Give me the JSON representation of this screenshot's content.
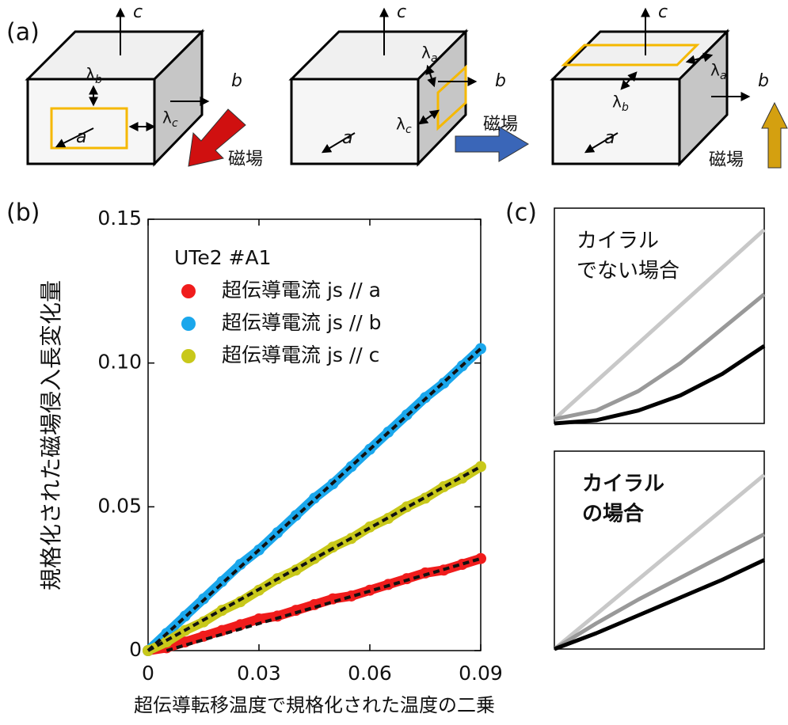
{
  "panel_a": {
    "label": "(a)",
    "cubes": [
      {
        "c": "c",
        "b": "b",
        "a": "a",
        "lambdas": [
          {
            "symbol": "λ",
            "sub": "b"
          },
          {
            "symbol": "λ",
            "sub": "c"
          }
        ],
        "field": "磁場"
      },
      {
        "c": "c",
        "b": "b",
        "a": "a",
        "lambdas": [
          {
            "symbol": "λ",
            "sub": "a"
          },
          {
            "symbol": "λ",
            "sub": "c"
          }
        ],
        "field": "磁場"
      },
      {
        "c": "c",
        "b": "b",
        "a": "a",
        "lambdas": [
          {
            "symbol": "λ",
            "sub": "a"
          },
          {
            "symbol": "λ",
            "sub": "b"
          }
        ],
        "field": "磁場"
      }
    ]
  },
  "panel_b_label": "(b)",
  "panel_c_label": "(c)",
  "chart_data": [
    {
      "type": "scatter",
      "xlabel": "超伝導転移温度で規格化された温度の二乗",
      "ylabel": "規格化された磁場侵入長変化量",
      "legend_title": "UTe2 #A1",
      "xlim": [
        0,
        0.09
      ],
      "ylim": [
        0,
        0.15
      ],
      "xticks": [
        0,
        0.03,
        0.06,
        0.09
      ],
      "yticks": [
        0,
        0.05,
        {
          "value": 0.1,
          "label": "0.10"
        },
        0.15
      ],
      "x": [
        0,
        0.005,
        0.01,
        0.015,
        0.02,
        0.025,
        0.03,
        0.035,
        0.04,
        0.045,
        0.05,
        0.055,
        0.06,
        0.065,
        0.07,
        0.075,
        0.08,
        0.085,
        0.09
      ],
      "fit_color": "#111111",
      "series": [
        {
          "name": "超伝導電流 js // a",
          "color": "#f01c1c",
          "values": [
            0,
            0.001,
            0.003,
            0.005,
            0.007,
            0.009,
            0.011,
            0.012,
            0.014,
            0.016,
            0.018,
            0.019,
            0.021,
            0.023,
            0.025,
            0.027,
            0.028,
            0.03,
            0.032
          ],
          "fit": {
            "x": [
              0.005,
              0.09
            ],
            "values": [
              0,
              0.032
            ]
          }
        },
        {
          "name": "超伝導電流 js // b",
          "color": "#1aa7ec",
          "values": [
            0,
            0.006,
            0.012,
            0.018,
            0.024,
            0.03,
            0.035,
            0.041,
            0.047,
            0.053,
            0.058,
            0.064,
            0.07,
            0.076,
            0.082,
            0.088,
            0.093,
            0.099,
            0.105
          ],
          "fit": {
            "x": [
              0,
              0.09
            ],
            "values": [
              0,
              0.105
            ]
          }
        },
        {
          "name": "超伝導電流 js // c",
          "color": "#c8c81a",
          "values": [
            0,
            0.003,
            0.007,
            0.01,
            0.014,
            0.017,
            0.021,
            0.025,
            0.028,
            0.032,
            0.036,
            0.039,
            0.043,
            0.046,
            0.05,
            0.053,
            0.057,
            0.06,
            0.064
          ],
          "fit": {
            "x": [
              0,
              0.09
            ],
            "values": [
              0,
              0.064
            ]
          }
        }
      ]
    },
    {
      "type": "line",
      "text": [
        "カイラル",
        "でない場合"
      ],
      "text_color": "#555555",
      "text_bold": false,
      "xlim": [
        0,
        1
      ],
      "ylim": [
        0,
        1
      ],
      "x": [
        0,
        0.2,
        0.4,
        0.6,
        0.8,
        1
      ],
      "series": [
        {
          "color": "#c8c8c8",
          "values": [
            0.02,
            0.196,
            0.372,
            0.548,
            0.724,
            0.9
          ]
        },
        {
          "color": "#999999",
          "values": [
            0.02,
            0.06,
            0.15,
            0.28,
            0.44,
            0.6
          ]
        },
        {
          "color": "#000000",
          "values": [
            0,
            0.015,
            0.06,
            0.13,
            0.23,
            0.36
          ]
        }
      ]
    },
    {
      "type": "line",
      "text": [
        "カイラル",
        "の場合"
      ],
      "text_color": "#ee1111",
      "text_bold": true,
      "xlim": [
        0,
        1
      ],
      "ylim": [
        0,
        1
      ],
      "x": [
        0,
        0.2,
        0.4,
        0.6,
        0.8,
        1
      ],
      "series": [
        {
          "color": "#c8c8c8",
          "values": [
            0,
            0.176,
            0.352,
            0.528,
            0.704,
            0.88
          ]
        },
        {
          "color": "#999999",
          "values": [
            0,
            0.13,
            0.25,
            0.36,
            0.47,
            0.58
          ]
        },
        {
          "color": "#000000",
          "values": [
            0,
            0.08,
            0.17,
            0.26,
            0.35,
            0.45
          ]
        }
      ]
    }
  ]
}
